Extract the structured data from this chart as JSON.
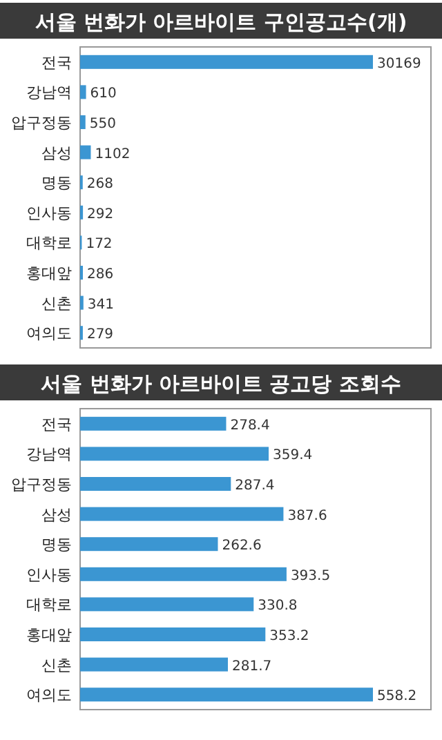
{
  "chart_data": [
    {
      "type": "bar",
      "orientation": "horizontal",
      "title": "서울 번화가 아르바이트 구인공고수(개)",
      "categories": [
        "전국",
        "강남역",
        "압구정동",
        "삼성",
        "명동",
        "인사동",
        "대학로",
        "홍대앞",
        "신촌",
        "여의도"
      ],
      "values": [
        30169,
        610,
        550,
        1102,
        268,
        292,
        172,
        286,
        341,
        279
      ],
      "color": "#3b96d2",
      "data_labels": true
    },
    {
      "type": "bar",
      "orientation": "horizontal",
      "title": "서울 번화가 아르바이트 공고당 조회수",
      "categories": [
        "전국",
        "강남역",
        "압구정동",
        "삼성",
        "명동",
        "인사동",
        "대학로",
        "홍대앞",
        "신촌",
        "여의도"
      ],
      "values": [
        278.4,
        359.4,
        287.4,
        387.6,
        262.6,
        393.5,
        330.8,
        353.2,
        281.7,
        558.2
      ],
      "color": "#3b96d2",
      "data_labels": true
    }
  ]
}
